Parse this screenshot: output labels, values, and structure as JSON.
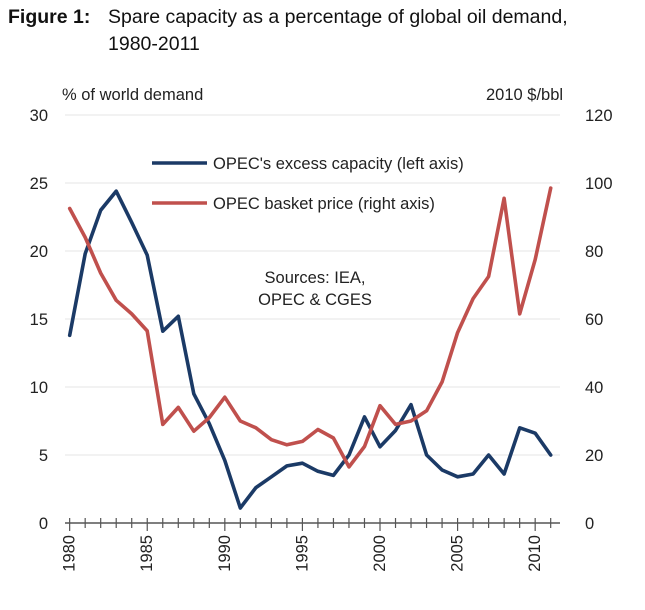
{
  "figure": {
    "label": "Figure 1:",
    "title_line1": "Spare capacity as a percentage of global oil demand,",
    "title_line2": "1980-2011"
  },
  "chart_data": {
    "type": "line",
    "title": "Spare capacity as a percentage of global oil demand, 1980-2011",
    "x": [
      1980,
      1981,
      1982,
      1983,
      1984,
      1985,
      1986,
      1987,
      1988,
      1989,
      1990,
      1991,
      1992,
      1993,
      1994,
      1995,
      1996,
      1997,
      1998,
      1999,
      2000,
      2001,
      2002,
      2003,
      2004,
      2005,
      2006,
      2007,
      2008,
      2009,
      2010,
      2011
    ],
    "xlim": [
      1979.7,
      2011.6
    ],
    "xticks": [
      1980,
      1985,
      1990,
      1995,
      2000,
      2005,
      2010
    ],
    "xtick_labels": [
      "1980",
      "1985",
      "1990",
      "1995",
      "2000",
      "2005",
      "2010"
    ],
    "left_axis": {
      "label": "% of world demand",
      "ylim": [
        0,
        30
      ],
      "ticks": [
        0,
        5,
        10,
        15,
        20,
        25,
        30
      ],
      "tick_labels": [
        "0",
        "5",
        "10",
        "15",
        "20",
        "25",
        "30"
      ]
    },
    "right_axis": {
      "label": "2010 $/bbl",
      "ylim": [
        0,
        120
      ],
      "ticks": [
        0,
        20,
        40,
        60,
        80,
        100,
        120
      ],
      "tick_labels": [
        "0",
        "20",
        "40",
        "60",
        "80",
        "100",
        "120"
      ]
    },
    "series": [
      {
        "name": "OPEC's excess capacity (left axis)",
        "axis": "left",
        "color": "#1b3a66",
        "values": [
          13.8,
          19.8,
          23.0,
          24.4,
          22.1,
          19.7,
          14.1,
          15.2,
          9.5,
          7.3,
          4.6,
          1.1,
          2.6,
          3.4,
          4.2,
          4.4,
          3.8,
          3.5,
          5.0,
          7.8,
          5.6,
          6.8,
          8.7,
          5.0,
          3.9,
          3.4,
          3.6,
          5.0,
          3.6,
          7.0,
          6.6,
          5.0
        ]
      },
      {
        "name": "OPEC basket price (right axis)",
        "axis": "right",
        "color": "#c0504d",
        "values": [
          92.5,
          84.0,
          73.5,
          65.5,
          61.5,
          56.5,
          29.0,
          34.0,
          27.0,
          31.0,
          37.0,
          30.0,
          28.0,
          24.5,
          23.0,
          24.0,
          27.5,
          25.0,
          16.5,
          22.5,
          34.5,
          29.0,
          30.0,
          33.0,
          41.5,
          56.0,
          66.0,
          72.5,
          95.5,
          61.5,
          77.5,
          98.5
        ]
      }
    ],
    "annotation": {
      "line1": "Sources: IEA,",
      "line2": "OPEC & CGES"
    }
  }
}
